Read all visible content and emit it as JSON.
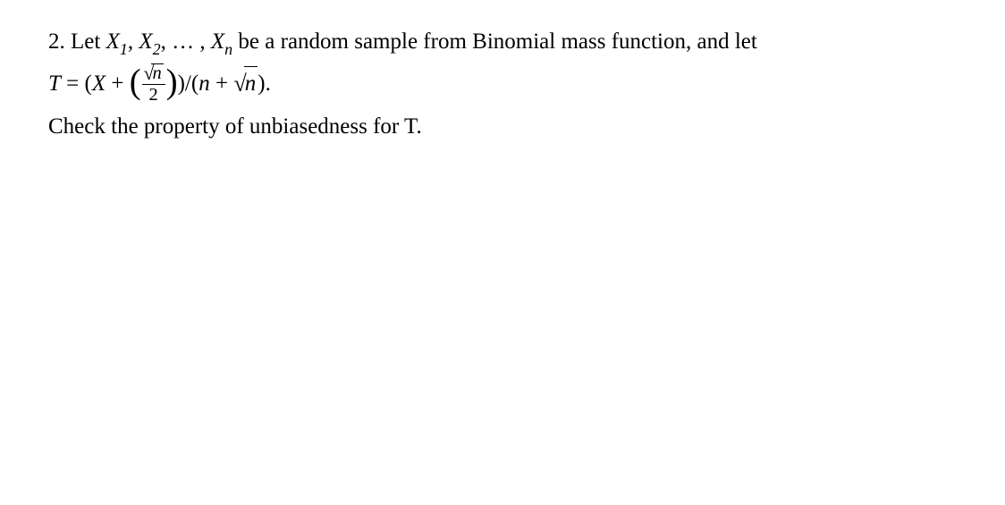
{
  "problem": {
    "number": "2.",
    "line1_a": "Let ",
    "var_x": "X",
    "sub_1": "1",
    "comma1": ", ",
    "sub_2": "2",
    "comma2": ", … , ",
    "sub_n": "n",
    "line1_b": " be a random sample from Binomial mass  function, and let",
    "var_t": "T",
    "eq": " = (",
    "plus": " + ",
    "sqrt_n": "n",
    "frac_den": "2",
    "close1": ")/(",
    "var_n": "n",
    "plus2": " + ",
    "close2": ").",
    "line3": "Check the property of unbiasedness for T."
  }
}
